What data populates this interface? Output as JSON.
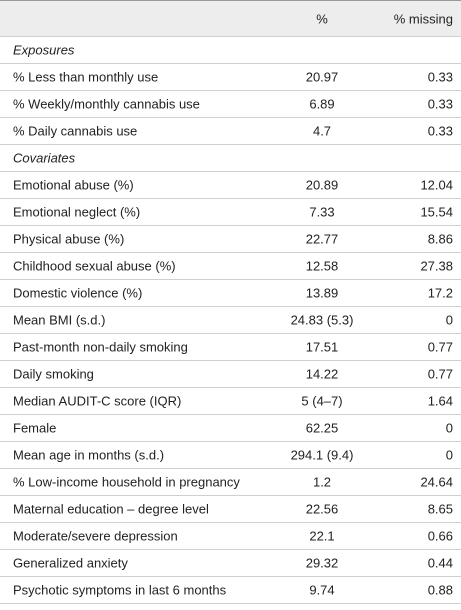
{
  "table": {
    "header": [
      "%",
      "% missing"
    ],
    "sections": [
      {
        "title": "Exposures",
        "rows": [
          [
            "% Less than monthly use",
            20.97,
            0.33
          ],
          [
            "% Weekly/monthly cannabis use",
            6.89,
            0.33
          ],
          [
            "% Daily cannabis use",
            4.7,
            0.33
          ]
        ]
      },
      {
        "title": "Covariates",
        "rows": [
          [
            "Emotional abuse (%)",
            20.89,
            12.04
          ],
          [
            "Emotional neglect (%)",
            7.33,
            15.54
          ],
          [
            "Physical abuse (%)",
            22.77,
            8.86
          ],
          [
            "Childhood sexual abuse (%)",
            12.58,
            27.38
          ],
          [
            "Domestic violence (%)",
            13.89,
            17.2
          ],
          [
            "Mean BMI (s.d.)",
            "24.83 (5.3)",
            0
          ],
          [
            "Past-month non-daily smoking",
            17.51,
            0.77
          ],
          [
            "Daily smoking",
            14.22,
            0.77
          ],
          [
            "Median AUDIT-C score (IQR)",
            "5 (4–7)",
            1.64
          ],
          [
            "Female",
            62.25,
            0
          ],
          [
            "Mean age in months (s.d.)",
            "294.1 (9.4)",
            0
          ],
          [
            "% Low-income household in pregnancy",
            1.2,
            24.64
          ],
          [
            "Maternal education – degree level",
            22.56,
            8.65
          ],
          [
            "Moderate/severe depression",
            22.1,
            0.66
          ],
          [
            "Generalized anxiety",
            29.32,
            0.44
          ],
          [
            "Psychotic symptoms in last 6 months",
            9.74,
            0.88
          ]
        ]
      }
    ]
  }
}
